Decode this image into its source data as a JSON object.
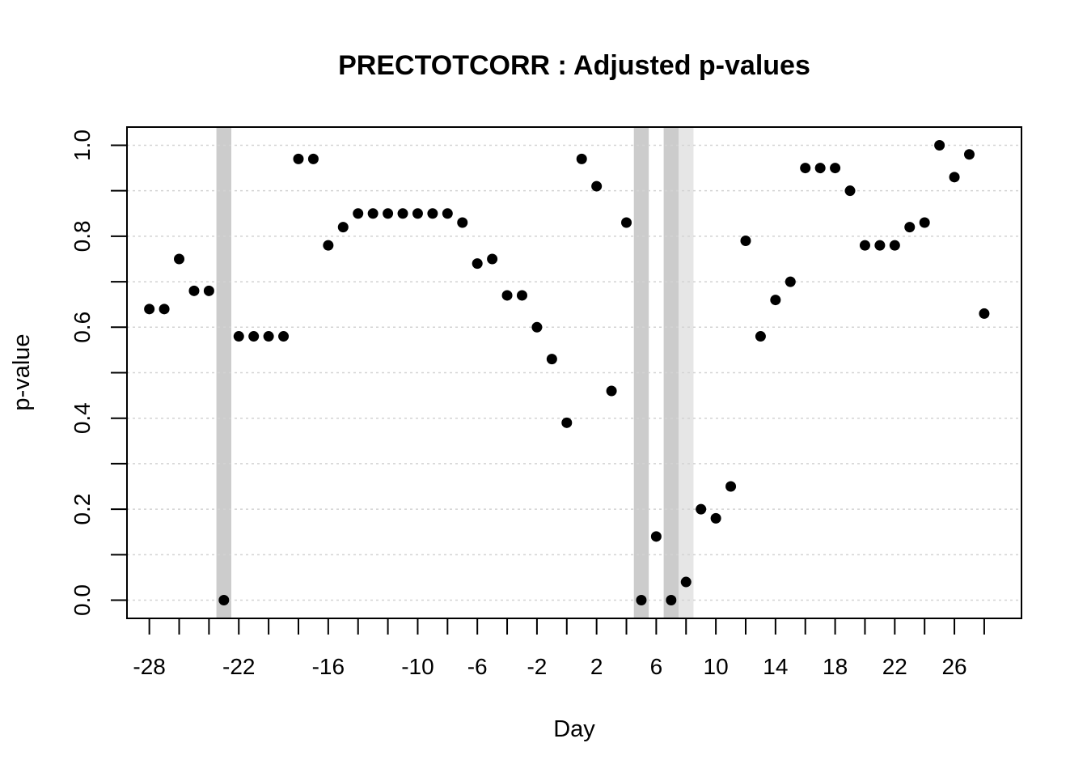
{
  "chart_data": {
    "type": "scatter",
    "title": "PRECTOTCORR : Adjusted p-values",
    "xlabel": "Day",
    "ylabel": "p-value",
    "xlim": [
      -29.5,
      30.5
    ],
    "ylim": [
      -0.04,
      1.04
    ],
    "x_ticks": [
      -28,
      -22,
      -16,
      -10,
      -6,
      -2,
      2,
      6,
      10,
      14,
      18,
      22,
      26
    ],
    "x_tick_marks": [
      -28,
      -26,
      -24,
      -22,
      -20,
      -18,
      -16,
      -14,
      -12,
      -10,
      -8,
      -6,
      -4,
      -2,
      0,
      2,
      4,
      6,
      8,
      10,
      12,
      14,
      16,
      18,
      20,
      22,
      24,
      26,
      28
    ],
    "y_ticks": [
      "0.0",
      "0.2",
      "0.4",
      "0.6",
      "0.8",
      "1.0"
    ],
    "y_gridlines": [
      0,
      0.1,
      0.2,
      0.3,
      0.4,
      0.5,
      0.6,
      0.7,
      0.8,
      0.9,
      1.0
    ],
    "grid": "horizontal dotted",
    "highlight_bands": [
      {
        "day": -23,
        "color": "#cccccc"
      },
      {
        "day": 5,
        "color": "#cccccc"
      },
      {
        "day": 7,
        "color": "#cccccc"
      },
      {
        "day": 8,
        "color": "#e6e6e6"
      }
    ],
    "x": [
      -28,
      -27,
      -26,
      -25,
      -24,
      -23,
      -22,
      -21,
      -20,
      -19,
      -18,
      -17,
      -16,
      -15,
      -14,
      -13,
      -12,
      -11,
      -10,
      -9,
      -8,
      -7,
      -6,
      -5,
      -4,
      -3,
      -2,
      -1,
      0,
      1,
      2,
      3,
      4,
      5,
      6,
      7,
      8,
      9,
      10,
      11,
      12,
      13,
      14,
      15,
      16,
      17,
      18,
      19,
      20,
      21,
      22,
      23,
      24,
      25,
      26,
      27,
      28
    ],
    "y": [
      0.64,
      0.64,
      0.75,
      0.68,
      0.68,
      0.0,
      0.58,
      0.58,
      0.58,
      0.58,
      0.97,
      0.97,
      0.78,
      0.82,
      0.85,
      0.85,
      0.85,
      0.85,
      0.85,
      0.85,
      0.85,
      0.83,
      0.74,
      0.75,
      0.67,
      0.67,
      0.6,
      0.53,
      0.39,
      0.97,
      0.91,
      0.46,
      0.83,
      0.0,
      0.14,
      0.0,
      0.04,
      0.2,
      0.18,
      0.25,
      0.79,
      0.58,
      0.66,
      0.7,
      0.95,
      0.95,
      0.95,
      0.9,
      0.78,
      0.78,
      0.78,
      0.82,
      0.83,
      1.0,
      0.93,
      0.98,
      0.63
    ],
    "point_color": "#000000"
  }
}
